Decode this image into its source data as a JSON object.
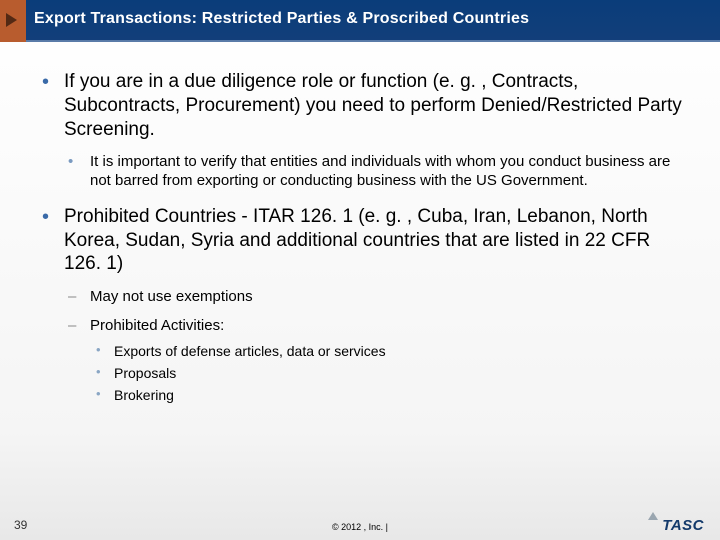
{
  "header": {
    "title": "Export Transactions: Restricted Parties & Proscribed Countries",
    "accent_color": "#b85c2e",
    "bar_color": "#0a3d7a"
  },
  "bullets": [
    {
      "text": "If you are in a due diligence role or function (e. g. , Contracts, Subcontracts, Procurement) you need to perform Denied/Restricted Party Screening.",
      "children": [
        {
          "style": "bullet",
          "text": "It is important to verify that entities and individuals with whom you conduct business are not barred from exporting or conducting business with the US Government."
        }
      ]
    },
    {
      "text": "Prohibited Countries  - ITAR 126. 1 (e. g. , Cuba, Iran, Lebanon, North Korea, Sudan, Syria and additional countries that are listed in 22 CFR 126. 1)",
      "children": [
        {
          "style": "dash",
          "text": "May not use exemptions"
        },
        {
          "style": "dash",
          "text": "Prohibited Activities:",
          "children": [
            {
              "text": "Exports of defense articles, data or services"
            },
            {
              "text": "Proposals"
            },
            {
              "text": "Brokering"
            }
          ]
        }
      ]
    }
  ],
  "footer": {
    "page_number": "39",
    "copyright": "© 2012 , Inc. |",
    "logo_text": "TASC"
  }
}
